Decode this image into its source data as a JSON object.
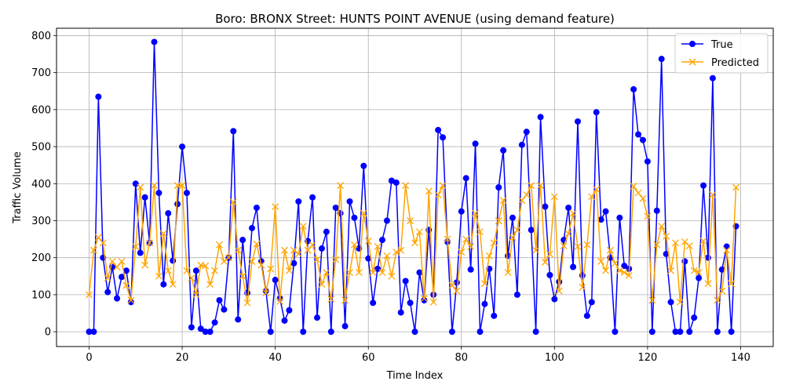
{
  "chart_data": {
    "type": "line",
    "title": "Boro: BRONX Street: HUNTS POINT AVENUE (using demand feature)",
    "xlabel": "Time Index",
    "ylabel": "Traffic Volume",
    "xlim": [
      -7,
      147
    ],
    "ylim": [
      -40,
      820
    ],
    "xticks": [
      0,
      20,
      40,
      60,
      80,
      100,
      120,
      140
    ],
    "yticks": [
      0,
      100,
      200,
      300,
      400,
      500,
      600,
      700,
      800
    ],
    "grid": true,
    "legend_position": "top-right",
    "series": [
      {
        "name": "True",
        "color": "#0000ff",
        "marker": "circle",
        "values": [
          0,
          0,
          635,
          200,
          107,
          175,
          90,
          148,
          165,
          80,
          400,
          213,
          363,
          240,
          783,
          375,
          128,
          320,
          192,
          345,
          500,
          375,
          12,
          165,
          8,
          0,
          0,
          25,
          85,
          60,
          200,
          542,
          33,
          248,
          105,
          280,
          335,
          190,
          110,
          0,
          140,
          90,
          30,
          58,
          185,
          352,
          0,
          245,
          363,
          38,
          225,
          270,
          0,
          335,
          320,
          15,
          352,
          308,
          225,
          448,
          198,
          78,
          170,
          248,
          300,
          408,
          403,
          52,
          137,
          78,
          0,
          160,
          85,
          275,
          100,
          545,
          525,
          243,
          0,
          133,
          325,
          415,
          168,
          508,
          0,
          75,
          170,
          43,
          390,
          490,
          205,
          308,
          100,
          505,
          540,
          275,
          0,
          580,
          338,
          153,
          88,
          135,
          248,
          335,
          175,
          568,
          152,
          43,
          80,
          593,
          303,
          325,
          200,
          0,
          308,
          178,
          170,
          655,
          533,
          518,
          460,
          0,
          327,
          737,
          210,
          80,
          0,
          0,
          190,
          0,
          38,
          145,
          395,
          200,
          685,
          0,
          168,
          230,
          0,
          285
        ]
      },
      {
        "name": "Predicted",
        "color": "#ffa500",
        "marker": "x",
        "values": [
          100,
          220,
          255,
          240,
          145,
          190,
          175,
          190,
          125,
          85,
          230,
          390,
          180,
          240,
          395,
          150,
          265,
          165,
          128,
          395,
          395,
          165,
          145,
          100,
          180,
          178,
          128,
          165,
          235,
          190,
          200,
          350,
          220,
          150,
          78,
          190,
          237,
          180,
          105,
          170,
          338,
          82,
          220,
          165,
          220,
          210,
          285,
          220,
          235,
          195,
          128,
          160,
          88,
          195,
          395,
          85,
          160,
          235,
          160,
          320,
          245,
          160,
          230,
          160,
          205,
          150,
          215,
          220,
          395,
          300,
          240,
          270,
          90,
          380,
          80,
          370,
          395,
          250,
          125,
          110,
          215,
          250,
          230,
          320,
          270,
          130,
          205,
          240,
          300,
          355,
          160,
          255,
          275,
          355,
          370,
          395,
          220,
          395,
          188,
          210,
          365,
          110,
          232,
          265,
          320,
          230,
          120,
          235,
          365,
          385,
          190,
          165,
          220,
          185,
          165,
          160,
          152,
          393,
          375,
          360,
          312,
          85,
          235,
          285,
          258,
          165,
          240,
          80,
          243,
          232,
          165,
          160,
          245,
          130,
          370,
          85,
          110,
          220,
          130,
          390
        ]
      }
    ]
  }
}
